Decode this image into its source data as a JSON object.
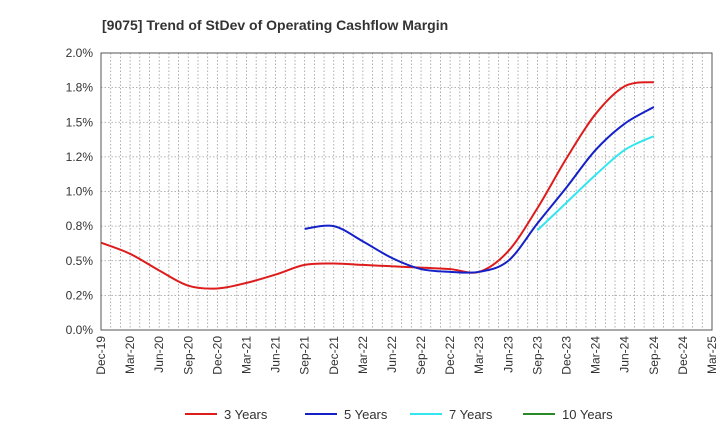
{
  "chart_data": {
    "type": "line",
    "title": "[9075]  Trend of StDev of Operating Cashflow Margin",
    "x_categories": [
      "Dec-19",
      "Mar-20",
      "Jun-20",
      "Sep-20",
      "Dec-20",
      "Mar-21",
      "Jun-21",
      "Sep-21",
      "Dec-21",
      "Mar-22",
      "Jun-22",
      "Sep-22",
      "Dec-22",
      "Mar-23",
      "Jun-23",
      "Sep-23",
      "Dec-23",
      "Mar-24",
      "Jun-24",
      "Sep-24",
      "Dec-24",
      "Mar-25"
    ],
    "y_ticks": [
      "0.0%",
      "0.2%",
      "0.5%",
      "0.8%",
      "1.0%",
      "1.2%",
      "1.5%",
      "1.8%",
      "2.0%"
    ],
    "ylim": [
      0,
      2.0
    ],
    "grid": true,
    "legend_position": "bottom",
    "series": [
      {
        "name": "3 Years",
        "color": "#dd1c1c",
        "values": [
          0.63,
          0.55,
          0.43,
          0.32,
          0.3,
          0.34,
          0.4,
          0.47,
          0.48,
          0.47,
          0.46,
          0.45,
          0.44,
          0.42,
          0.57,
          0.88,
          1.24,
          1.56,
          1.76,
          1.79,
          null,
          null
        ]
      },
      {
        "name": "5 Years",
        "color": "#1420c8",
        "values": [
          null,
          null,
          null,
          null,
          null,
          null,
          null,
          0.73,
          0.75,
          0.64,
          0.52,
          0.44,
          0.42,
          0.42,
          0.5,
          0.77,
          1.03,
          1.3,
          1.49,
          1.61,
          null,
          null
        ]
      },
      {
        "name": "7 Years",
        "color": "#33e5ee",
        "values": [
          null,
          null,
          null,
          null,
          null,
          null,
          null,
          null,
          null,
          null,
          null,
          null,
          null,
          null,
          null,
          0.72,
          0.92,
          1.12,
          1.3,
          1.4,
          null,
          null
        ]
      },
      {
        "name": "10 Years",
        "color": "#2a8a2a",
        "values": [
          null,
          null,
          null,
          null,
          null,
          null,
          null,
          null,
          null,
          null,
          null,
          null,
          null,
          null,
          null,
          null,
          null,
          null,
          null,
          null,
          null,
          null
        ]
      }
    ]
  }
}
